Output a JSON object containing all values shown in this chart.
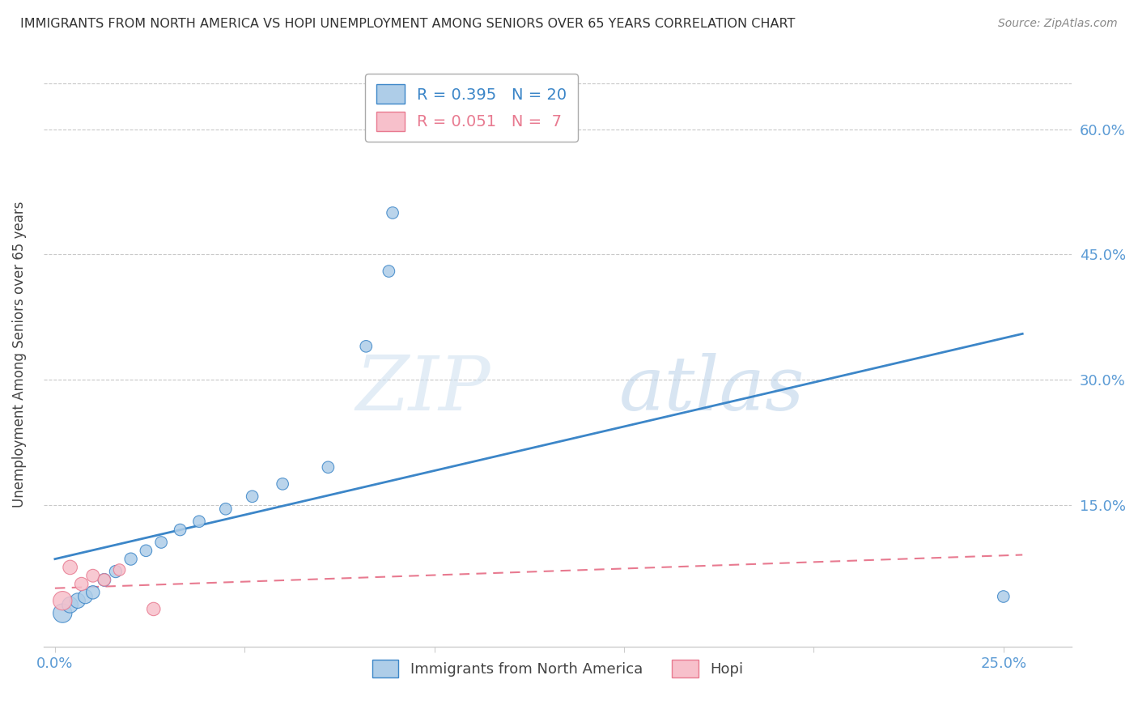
{
  "title": "IMMIGRANTS FROM NORTH AMERICA VS HOPI UNEMPLOYMENT AMONG SENIORS OVER 65 YEARS CORRELATION CHART",
  "source": "Source: ZipAtlas.com",
  "xlabel_ticks": [
    0.0,
    0.05,
    0.1,
    0.15,
    0.2,
    0.25
  ],
  "xlabel_labels": [
    "0.0%",
    "",
    "",
    "",
    "",
    "25.0%"
  ],
  "ylabel": "Unemployment Among Seniors over 65 years",
  "ylabel_right_ticks": [
    0.0,
    0.15,
    0.3,
    0.45,
    0.6
  ],
  "ylabel_right_labels": [
    "",
    "15.0%",
    "30.0%",
    "45.0%",
    "60.0%"
  ],
  "xlim": [
    -0.003,
    0.268
  ],
  "ylim": [
    -0.02,
    0.68
  ],
  "blue_scatter_x": [
    0.002,
    0.004,
    0.006,
    0.008,
    0.01,
    0.013,
    0.016,
    0.02,
    0.024,
    0.028,
    0.033,
    0.038,
    0.045,
    0.052,
    0.06,
    0.072,
    0.082,
    0.088,
    0.089,
    0.25
  ],
  "blue_scatter_y": [
    0.02,
    0.03,
    0.035,
    0.04,
    0.045,
    0.06,
    0.07,
    0.085,
    0.095,
    0.105,
    0.12,
    0.13,
    0.145,
    0.16,
    0.175,
    0.195,
    0.34,
    0.43,
    0.5,
    0.04
  ],
  "blue_scatter_sizes": [
    280,
    200,
    180,
    160,
    140,
    130,
    120,
    120,
    110,
    110,
    110,
    110,
    110,
    110,
    110,
    110,
    110,
    110,
    110,
    110
  ],
  "pink_scatter_x": [
    0.002,
    0.004,
    0.007,
    0.01,
    0.013,
    0.017,
    0.026
  ],
  "pink_scatter_y": [
    0.035,
    0.075,
    0.055,
    0.065,
    0.06,
    0.072,
    0.025
  ],
  "pink_scatter_sizes": [
    280,
    160,
    140,
    130,
    120,
    110,
    140
  ],
  "blue_line_x": [
    0.0,
    0.255
  ],
  "blue_line_y": [
    0.085,
    0.355
  ],
  "pink_line_x": [
    0.0,
    0.255
  ],
  "pink_line_y": [
    0.05,
    0.09
  ],
  "blue_color": "#aecde8",
  "pink_color": "#f7c0cb",
  "blue_line_color": "#3c86c8",
  "pink_line_color": "#e87a90",
  "legend_r_blue": "R = 0.395",
  "legend_n_blue": "N = 20",
  "legend_r_pink": "R = 0.051",
  "legend_n_pink": "N =  7",
  "watermark_zip": "ZIP",
  "watermark_atlas": "atlas",
  "grid_color": "#c8c8c8",
  "background_color": "#ffffff",
  "title_color": "#333333",
  "axis_tick_color": "#5b9bd5",
  "source_color": "#888888"
}
